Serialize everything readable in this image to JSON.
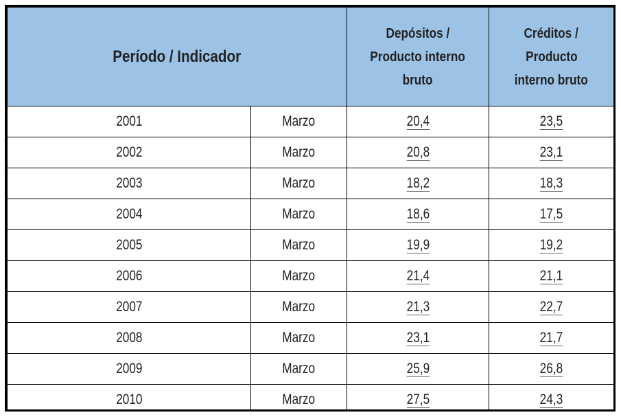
{
  "table": {
    "headers": {
      "period": "Período / Indicador",
      "deposits": [
        "Depósitos /",
        "Producto interno",
        "bruto"
      ],
      "credits": [
        "Créditos /",
        "Producto",
        "interno bruto"
      ]
    },
    "rows": [
      {
        "year": "2001",
        "month": "Marzo",
        "deposits": "20,4",
        "credits": "23,5"
      },
      {
        "year": "2002",
        "month": "Marzo",
        "deposits": "20,8",
        "credits": "23,1"
      },
      {
        "year": "2003",
        "month": "Marzo",
        "deposits": "18,2",
        "credits": "18,3"
      },
      {
        "year": "2004",
        "month": "Marzo",
        "deposits": "18,6",
        "credits": "17,5"
      },
      {
        "year": "2005",
        "month": "Marzo",
        "deposits": "19,9",
        "credits": "19,2"
      },
      {
        "year": "2006",
        "month": "Marzo",
        "deposits": "21,4",
        "credits": "21,1"
      },
      {
        "year": "2007",
        "month": "Marzo",
        "deposits": "21,3",
        "credits": "22,7"
      },
      {
        "year": "2008",
        "month": "Marzo",
        "deposits": "23,1",
        "credits": "21,7"
      },
      {
        "year": "2009",
        "month": "Marzo",
        "deposits": "25,9",
        "credits": "26,8"
      },
      {
        "year": "2010",
        "month": "Marzo",
        "deposits": "27,5",
        "credits": "24,3"
      }
    ]
  },
  "colors": {
    "header_bg": "#9cc3e6",
    "border": "#000000",
    "text": "#222222"
  }
}
